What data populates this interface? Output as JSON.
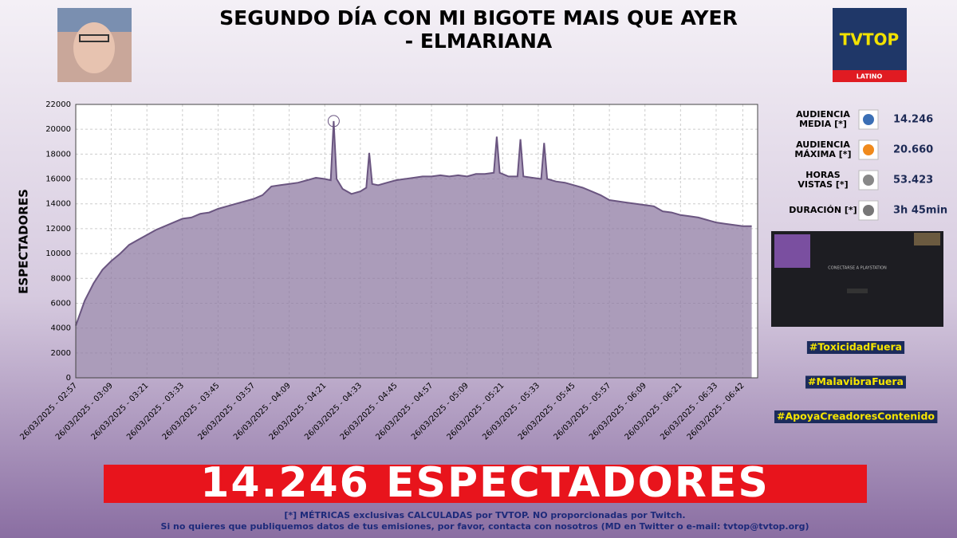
{
  "header": {
    "title_lines": [
      "SEGUNDO DÍA CON MI BIGOTE MAIS QUE AYER",
      "- ELMARIANA"
    ],
    "logo": "TVTOP",
    "logo_region": "LATINO"
  },
  "chart_data": {
    "type": "area",
    "y_label": "ESPECTADORES",
    "color": "#6a5580",
    "fill": "#8f7ba3",
    "grid": true,
    "ylim": [
      0,
      22000
    ],
    "yticks": [
      0,
      2000,
      4000,
      6000,
      8000,
      10000,
      12000,
      14000,
      16000,
      18000,
      20000,
      22000
    ],
    "xlim": [
      "26/03/2025 - 02:57",
      "26/03/2025 - 06:47"
    ],
    "xticks": [
      "26/03/2025 - 02:57",
      "26/03/2025 - 03:09",
      "26/03/2025 - 03:21",
      "26/03/2025 - 03:33",
      "26/03/2025 - 03:45",
      "26/03/2025 - 03:57",
      "26/03/2025 - 04:09",
      "26/03/2025 - 04:21",
      "26/03/2025 - 04:33",
      "26/03/2025 - 04:45",
      "26/03/2025 - 04:57",
      "26/03/2025 - 05:09",
      "26/03/2025 - 05:21",
      "26/03/2025 - 05:33",
      "26/03/2025 - 05:45",
      "26/03/2025 - 05:57",
      "26/03/2025 - 06:09",
      "26/03/2025 - 06:21",
      "26/03/2025 - 06:33",
      "26/03/2025 - 06:42"
    ],
    "x": [
      "26/03/2025 - 02:57",
      "26/03/2025 - 03:00",
      "26/03/2025 - 03:03",
      "26/03/2025 - 03:06",
      "26/03/2025 - 03:09",
      "26/03/2025 - 03:12",
      "26/03/2025 - 03:15",
      "26/03/2025 - 03:18",
      "26/03/2025 - 03:21",
      "26/03/2025 - 03:24",
      "26/03/2025 - 03:27",
      "26/03/2025 - 03:30",
      "26/03/2025 - 03:33",
      "26/03/2025 - 03:36",
      "26/03/2025 - 03:39",
      "26/03/2025 - 03:42",
      "26/03/2025 - 03:45",
      "26/03/2025 - 03:48",
      "26/03/2025 - 03:51",
      "26/03/2025 - 03:54",
      "26/03/2025 - 03:57",
      "26/03/2025 - 04:00",
      "26/03/2025 - 04:03",
      "26/03/2025 - 04:06",
      "26/03/2025 - 04:09",
      "26/03/2025 - 04:12",
      "26/03/2025 - 04:15",
      "26/03/2025 - 04:18",
      "26/03/2025 - 04:21",
      "26/03/2025 - 04:23",
      "26/03/2025 - 04:24",
      "26/03/2025 - 04:25",
      "26/03/2025 - 04:27",
      "26/03/2025 - 04:30",
      "26/03/2025 - 04:33",
      "26/03/2025 - 04:35",
      "26/03/2025 - 04:36",
      "26/03/2025 - 04:37",
      "26/03/2025 - 04:39",
      "26/03/2025 - 04:42",
      "26/03/2025 - 04:45",
      "26/03/2025 - 04:48",
      "26/03/2025 - 04:51",
      "26/03/2025 - 04:54",
      "26/03/2025 - 04:57",
      "26/03/2025 - 05:00",
      "26/03/2025 - 05:03",
      "26/03/2025 - 05:06",
      "26/03/2025 - 05:09",
      "26/03/2025 - 05:12",
      "26/03/2025 - 05:15",
      "26/03/2025 - 05:18",
      "26/03/2025 - 05:19",
      "26/03/2025 - 05:20",
      "26/03/2025 - 05:23",
      "26/03/2025 - 05:26",
      "26/03/2025 - 05:27",
      "26/03/2025 - 05:28",
      "26/03/2025 - 05:31",
      "26/03/2025 - 05:34",
      "26/03/2025 - 05:35",
      "26/03/2025 - 05:36",
      "26/03/2025 - 05:39",
      "26/03/2025 - 05:42",
      "26/03/2025 - 05:45",
      "26/03/2025 - 05:48",
      "26/03/2025 - 05:51",
      "26/03/2025 - 05:54",
      "26/03/2025 - 05:57",
      "26/03/2025 - 06:00",
      "26/03/2025 - 06:03",
      "26/03/2025 - 06:06",
      "26/03/2025 - 06:09",
      "26/03/2025 - 06:12",
      "26/03/2025 - 06:15",
      "26/03/2025 - 06:18",
      "26/03/2025 - 06:21",
      "26/03/2025 - 06:24",
      "26/03/2025 - 06:27",
      "26/03/2025 - 06:30",
      "26/03/2025 - 06:33",
      "26/03/2025 - 06:36",
      "26/03/2025 - 06:39",
      "26/03/2025 - 06:42",
      "26/03/2025 - 06:45"
    ],
    "values": [
      4200,
      6200,
      7600,
      8700,
      9400,
      10000,
      10700,
      11100,
      11500,
      11900,
      12200,
      12500,
      12800,
      12900,
      13200,
      13300,
      13600,
      13800,
      14000,
      14200,
      14400,
      14700,
      15400,
      15500,
      15600,
      15700,
      15900,
      16100,
      16000,
      15900,
      20660,
      16000,
      15200,
      14800,
      15000,
      15300,
      18100,
      15600,
      15500,
      15700,
      15900,
      16000,
      16100,
      16200,
      16200,
      16300,
      16200,
      16300,
      16200,
      16400,
      16400,
      16500,
      19400,
      16500,
      16200,
      16200,
      19200,
      16200,
      16100,
      16000,
      18900,
      16000,
      15800,
      15700,
      15500,
      15300,
      15000,
      14700,
      14300,
      14200,
      14100,
      14000,
      13900,
      13800,
      13400,
      13300,
      13100,
      13000,
      12900,
      12700,
      12500,
      12400,
      12300,
      12200,
      12200
    ]
  },
  "stats": [
    {
      "label": [
        "AUDIENCIA",
        "MEDIA [*]"
      ],
      "value": "14.246"
    },
    {
      "label": [
        "AUDIENCIA",
        "MÁXIMA [*]"
      ],
      "value": "20.660"
    },
    {
      "label": [
        "HORAS",
        "VISTAS [*]"
      ],
      "value": "53.423"
    },
    {
      "label": [
        "DURACIÓN [*]"
      ],
      "value": "3h 45min"
    }
  ],
  "thumbnail": {
    "text": "CONECTARSE A PLAYSTATION"
  },
  "hashtags": [
    "#ToxicidadFuera",
    "#MalavibraFuera",
    "#ApoyaCreadoresContenido"
  ],
  "banner": "14.246 ESPECTADORES",
  "footer": [
    "[*] MÉTRICAS exclusivas CALCULADAS por TVTOP. NO proporcionadas por Twitch.",
    "Si no quieres que publiquemos datos de tus emisiones, por favor, contacta con nosotros (MD en Twitter o e-mail: tvtop@tvtop.org)"
  ]
}
